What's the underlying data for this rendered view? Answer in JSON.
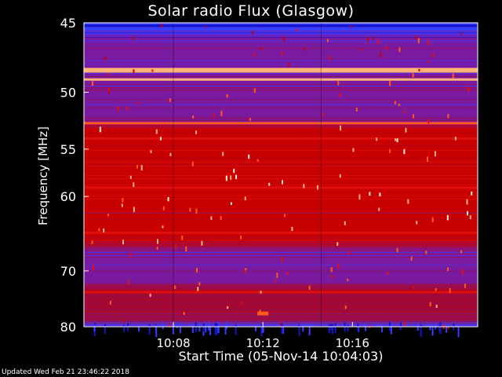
{
  "chart_data": {
    "type": "heatmap",
    "title": "Solar radio Flux (Glasgow)",
    "xlabel": "Start Time (05-Nov-14 10:04:03)",
    "ylabel": "Frequency [MHz]",
    "footer": "Updated Wed Feb 21 23:46:22 2018",
    "x_range_min": [
      0,
      17.6
    ],
    "x_ticks": [
      {
        "label": "10:08",
        "value": 4.0
      },
      {
        "label": "10:12",
        "value": 8.0
      },
      {
        "label": "10:16",
        "value": 12.0
      }
    ],
    "y_scale": "reciprocal",
    "y_range_mhz": [
      45,
      80
    ],
    "y_ticks": [
      45,
      50,
      55,
      60,
      70,
      80
    ],
    "segment_boundaries_min": [
      4.0,
      10.6
    ],
    "colormap": [
      "#0a0050",
      "#1414c8",
      "#3c3cff",
      "#7a1aa0",
      "#a00a3a",
      "#c80000",
      "#e01010",
      "#ff5a1e",
      "#ffb478",
      "#fff0dc"
    ],
    "bands": [
      {
        "mhz": 45.2,
        "level": 0.1,
        "note": "dark navy top edge"
      },
      {
        "mhz": 48.3,
        "level": 0.92,
        "note": "bright cream band"
      },
      {
        "mhz": 49.0,
        "level": 0.85
      },
      {
        "mhz": 52.6,
        "level": 0.8
      },
      {
        "mhz": 54.0,
        "level": 0.7
      },
      {
        "mhz": 59.0,
        "level": 0.7
      },
      {
        "mhz": 64.5,
        "level": 0.62
      },
      {
        "mhz": 73.5,
        "level": 0.62
      }
    ],
    "hotspots": [
      {
        "time_min": 8.0,
        "mhz": 77.3,
        "level": 0.8
      }
    ]
  }
}
